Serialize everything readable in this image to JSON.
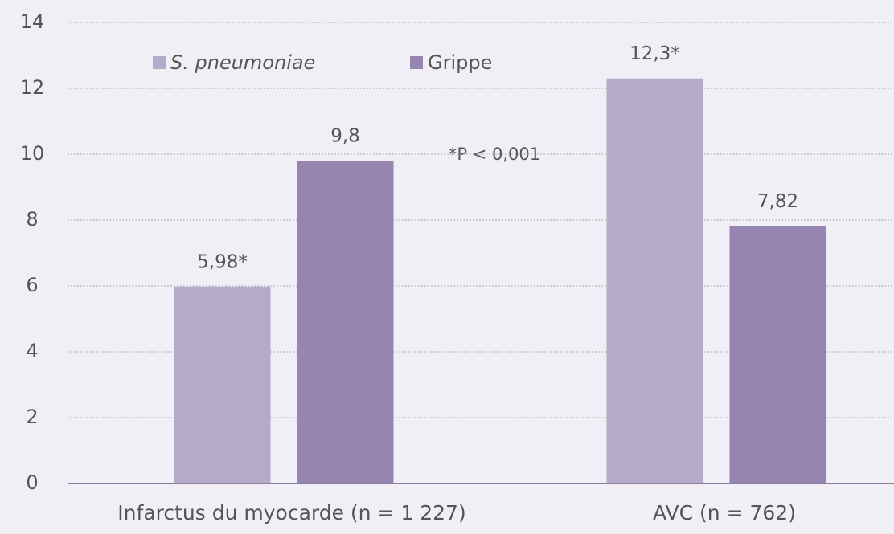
{
  "chart_data": {
    "type": "bar",
    "categories": [
      "Infarctus du myocarde (n = 1 227)",
      "AVC (n = 762)"
    ],
    "series": [
      {
        "name": "S. pneumoniae",
        "color": "#b5aac8",
        "values": [
          5.98,
          12.3
        ],
        "value_labels": [
          "5,98*",
          "12,3*"
        ]
      },
      {
        "name": "Grippe",
        "color": "#9585b0",
        "values": [
          9.8,
          7.82
        ],
        "value_labels": [
          "9,8",
          "7,82"
        ]
      }
    ],
    "annotations": [
      "*P < 0,001"
    ],
    "ylim": [
      0,
      14
    ],
    "yticks": [
      0,
      2,
      4,
      6,
      8,
      10,
      12,
      14
    ],
    "grid": true,
    "legend": "top-left"
  }
}
